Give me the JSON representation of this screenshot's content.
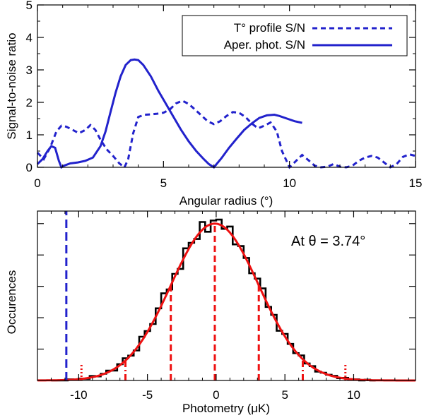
{
  "chart_data": [
    {
      "type": "line",
      "xlabel": "Angular radius (°)",
      "ylabel": "Signal-to-noise ratio",
      "xlim": [
        0,
        15
      ],
      "ylim": [
        0,
        5
      ],
      "xticks": [
        0,
        5,
        10,
        15
      ],
      "xtick_labels": [
        "0",
        "5",
        "10",
        "15"
      ],
      "yticks": [
        0,
        1,
        2,
        3,
        4,
        5
      ],
      "ytick_labels": [
        "0",
        "1",
        "2",
        "3",
        "4",
        "5"
      ],
      "legend_position": "top-right",
      "colors": {
        "series": "#2222cc",
        "axes": "#000000"
      },
      "series": [
        {
          "name": "T° profile S/N",
          "style": "dashed",
          "x": [
            0,
            0.25,
            0.5,
            0.75,
            0.95,
            1.15,
            1.4,
            1.65,
            1.9,
            2.1,
            2.3,
            2.5,
            2.75,
            3.0,
            3.25,
            3.45,
            3.6,
            3.8,
            4.0,
            4.25,
            4.5,
            4.75,
            5.0,
            5.25,
            5.5,
            5.75,
            6.0,
            6.25,
            6.5,
            6.75,
            7.0,
            7.25,
            7.5,
            7.75,
            8.0,
            8.25,
            8.5,
            8.75,
            9.0,
            9.25,
            9.5,
            9.7,
            10.0,
            10.2,
            10.5,
            10.75,
            11.0,
            11.25,
            11.5,
            11.75,
            12.0,
            12.25,
            12.5,
            12.75,
            13.0,
            13.25,
            13.5,
            13.75,
            14.0,
            14.25,
            14.5,
            14.75,
            15.0
          ],
          "values": [
            0.45,
            0.25,
            0.6,
            1.1,
            1.28,
            1.25,
            1.15,
            1.05,
            1.15,
            1.3,
            1.15,
            0.85,
            0.55,
            0.35,
            0.12,
            0.0,
            0.25,
            1.05,
            1.55,
            1.62,
            1.63,
            1.65,
            1.68,
            1.78,
            1.97,
            2.05,
            1.95,
            1.78,
            1.6,
            1.42,
            1.33,
            1.42,
            1.58,
            1.7,
            1.68,
            1.55,
            1.35,
            1.2,
            1.28,
            1.38,
            1.1,
            0.5,
            0.0,
            0.15,
            0.38,
            0.22,
            0.05,
            0.0,
            0.02,
            0.1,
            0.02,
            0.0,
            0.05,
            0.2,
            0.3,
            0.35,
            0.3,
            0.15,
            0.0,
            0.1,
            0.32,
            0.4,
            0.35
          ]
        },
        {
          "name": "Aper. phot. S/N",
          "style": "solid",
          "x": [
            0,
            0.2,
            0.4,
            0.55,
            0.7,
            0.85,
            0.95,
            1.05,
            1.3,
            1.6,
            1.9,
            2.2,
            2.5,
            2.7,
            2.9,
            3.1,
            3.3,
            3.5,
            3.7,
            3.85,
            4.0,
            4.2,
            4.5,
            4.8,
            5.1,
            5.4,
            5.7,
            6.0,
            6.3,
            6.6,
            6.8,
            7.0,
            7.3,
            7.6,
            7.9,
            8.2,
            8.5,
            8.8,
            9.1,
            9.4,
            9.6,
            9.9,
            10.2,
            10.5
          ],
          "values": [
            0.1,
            0.25,
            0.5,
            0.65,
            0.6,
            0.2,
            0.0,
            0.05,
            0.12,
            0.15,
            0.2,
            0.3,
            0.65,
            1.1,
            1.7,
            2.3,
            2.8,
            3.15,
            3.3,
            3.32,
            3.3,
            3.15,
            2.8,
            2.35,
            1.95,
            1.55,
            1.15,
            0.8,
            0.5,
            0.25,
            0.1,
            0.0,
            0.28,
            0.6,
            0.88,
            1.15,
            1.35,
            1.52,
            1.6,
            1.62,
            1.58,
            1.5,
            1.42,
            1.37
          ]
        }
      ]
    },
    {
      "type": "histogram",
      "xlabel": "Photometry (μK)",
      "ylabel": "Occurences",
      "annotation": "At θ = 3.74°",
      "xlim": [
        -13,
        14.5
      ],
      "ylim": [
        0,
        1.08
      ],
      "xticks": [
        -10,
        -5,
        0,
        5,
        10
      ],
      "xtick_labels": [
        "-10",
        "-5",
        "0",
        "5",
        "10"
      ],
      "y_minor_ticks": [
        0.2,
        0.4,
        0.6,
        0.8,
        1.0
      ],
      "colors": {
        "histogram": "#000000",
        "gaussian_fit": "#ee1111",
        "observed_value": "#2222cc",
        "percentiles": "#ee1111"
      },
      "gaussian_fit": {
        "mean": -0.1,
        "sigma": 3.2,
        "peak": 1.0
      },
      "bin_width": 0.4,
      "histogram_noise": [
        0.01,
        0.03,
        -0.02,
        0.04,
        -0.01,
        0.02,
        -0.03,
        0.05,
        -0.02,
        0.01,
        0.03,
        -0.04,
        0.02,
        0.04,
        -0.01,
        -0.03,
        0.05,
        0.01,
        -0.02,
        0.03,
        0.06,
        -0.01,
        0.02,
        -0.03,
        0.04,
        0.01,
        -0.02,
        0.05,
        -0.04,
        0.02,
        0.03,
        -0.01,
        0.04,
        -0.03,
        0.02,
        0.01,
        -0.02,
        0.03,
        0.05,
        -0.01,
        0.02,
        -0.04,
        0.03,
        0.01,
        -0.02,
        0.04,
        -0.01,
        0.02,
        -0.03,
        0.01
      ],
      "observed_value": -10.9,
      "sigma_lines": [
        {
          "x": -6.6,
          "style": "dashdot"
        },
        {
          "x": -3.3,
          "style": "dashed"
        },
        {
          "x": -0.1,
          "style": "dashed"
        },
        {
          "x": 3.1,
          "style": "dashed"
        },
        {
          "x": 6.3,
          "style": "dashdot"
        },
        {
          "x": -9.8,
          "style": "dotted"
        },
        {
          "x": 9.4,
          "style": "dotted"
        }
      ]
    }
  ]
}
